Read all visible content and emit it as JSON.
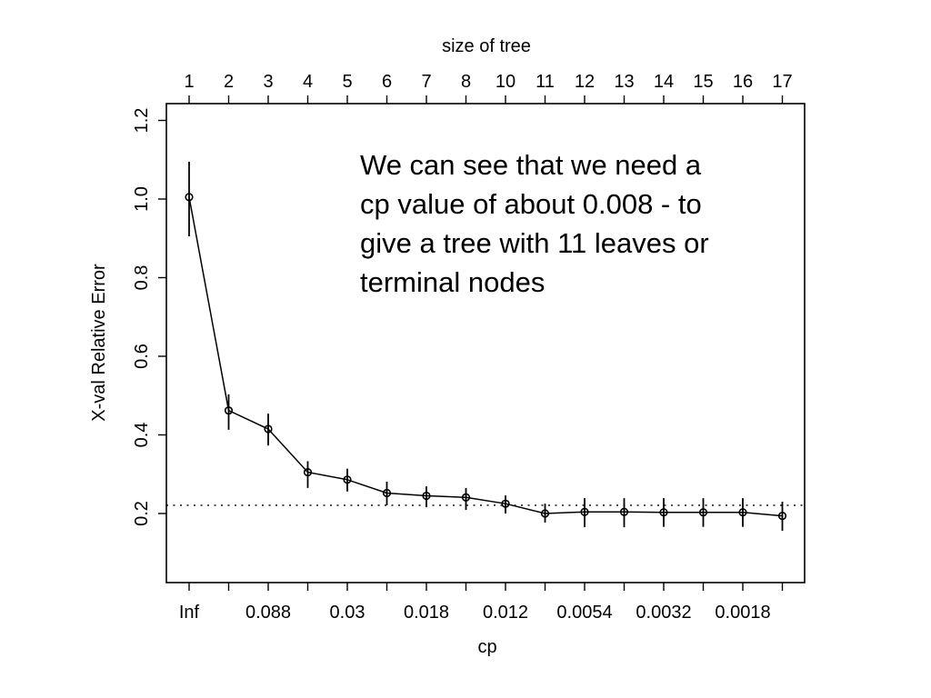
{
  "chart_data": {
    "type": "line",
    "title_top": "size of tree",
    "xlabel": "cp",
    "ylabel": "X-val Relative Error",
    "top_tick_labels": [
      "1",
      "2",
      "3",
      "4",
      "5",
      "6",
      "7",
      "8",
      "10",
      "11",
      "12",
      "13",
      "14",
      "15",
      "16",
      "17"
    ],
    "bottom_tick_labels": [
      "Inf",
      "0.088",
      "0.03",
      "0.018",
      "0.012",
      "0.0054",
      "0.0032",
      "0.0018"
    ],
    "bottom_label_tick_indices": [
      0,
      2,
      4,
      6,
      8,
      10,
      12,
      14
    ],
    "y_ticks": [
      0.2,
      0.4,
      0.6,
      0.8,
      1.0,
      1.2
    ],
    "ylim": [
      0.02,
      1.24
    ],
    "grid": false,
    "legend": null,
    "marker": "open-circle",
    "line_color": "#000000",
    "series": [
      {
        "name": "X-val Relative Error",
        "x_sizes": [
          1,
          2,
          3,
          4,
          5,
          6,
          7,
          8,
          10,
          11,
          12,
          13,
          14,
          15,
          16,
          17
        ],
        "values": [
          1.005,
          0.462,
          0.415,
          0.305,
          0.286,
          0.252,
          0.245,
          0.241,
          0.225,
          0.2,
          0.204,
          0.204,
          0.203,
          0.203,
          0.203,
          0.194
        ],
        "error_high": [
          1.095,
          0.503,
          0.454,
          0.333,
          0.314,
          0.281,
          0.269,
          0.265,
          0.246,
          0.225,
          0.239,
          0.239,
          0.239,
          0.239,
          0.239,
          0.23
        ],
        "error_low": [
          0.905,
          0.413,
          0.373,
          0.265,
          0.256,
          0.221,
          0.216,
          0.209,
          0.2,
          0.177,
          0.165,
          0.165,
          0.166,
          0.166,
          0.166,
          0.156
        ]
      }
    ],
    "dotted_threshold_value": 0.221
  },
  "annotation": {
    "lines": [
      "We can see that we need a",
      "cp value of about 0.008 - to",
      "give a tree with 11 leaves or",
      "terminal nodes"
    ]
  }
}
